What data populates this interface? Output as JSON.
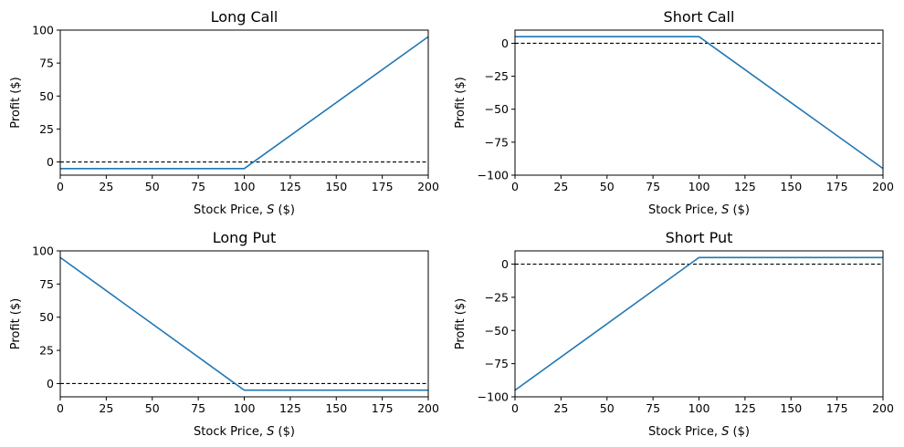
{
  "colors": {
    "line": "#1f77b4",
    "zero_line": "#000000"
  },
  "chart_data": [
    {
      "type": "line",
      "title": "Long Call",
      "xlabel": "Stock Price, S ($)",
      "ylabel": "Profit ($)",
      "xlim": [
        0,
        200
      ],
      "ylim": [
        -10,
        100
      ],
      "xticks": [
        0,
        25,
        50,
        75,
        100,
        125,
        150,
        175,
        200
      ],
      "yticks": [
        0,
        25,
        50,
        75,
        100
      ],
      "grid": false,
      "series": [
        {
          "x": [
            0,
            100,
            200
          ],
          "y": [
            -5,
            -5,
            95
          ]
        }
      ],
      "reference_lines": [
        {
          "y": 0,
          "style": "dashed"
        }
      ]
    },
    {
      "type": "line",
      "title": "Short Call",
      "xlabel": "Stock Price, S ($)",
      "ylabel": "Profit ($)",
      "xlim": [
        0,
        200
      ],
      "ylim": [
        -100,
        10
      ],
      "xticks": [
        0,
        25,
        50,
        75,
        100,
        125,
        150,
        175,
        200
      ],
      "yticks": [
        -100,
        -75,
        -50,
        -25,
        0
      ],
      "grid": false,
      "series": [
        {
          "x": [
            0,
            100,
            200
          ],
          "y": [
            5,
            5,
            -95
          ]
        }
      ],
      "reference_lines": [
        {
          "y": 0,
          "style": "dashed"
        }
      ]
    },
    {
      "type": "line",
      "title": "Long Put",
      "xlabel": "Stock Price, S ($)",
      "ylabel": "Profit ($)",
      "xlim": [
        0,
        200
      ],
      "ylim": [
        -10,
        100
      ],
      "xticks": [
        0,
        25,
        50,
        75,
        100,
        125,
        150,
        175,
        200
      ],
      "yticks": [
        0,
        25,
        50,
        75,
        100
      ],
      "grid": false,
      "series": [
        {
          "x": [
            0,
            100,
            200
          ],
          "y": [
            95,
            -5,
            -5
          ]
        }
      ],
      "reference_lines": [
        {
          "y": 0,
          "style": "dashed"
        }
      ]
    },
    {
      "type": "line",
      "title": "Short Put",
      "xlabel": "Stock Price, S ($)",
      "ylabel": "Profit ($)",
      "xlim": [
        0,
        200
      ],
      "ylim": [
        -100,
        10
      ],
      "xticks": [
        0,
        25,
        50,
        75,
        100,
        125,
        150,
        175,
        200
      ],
      "yticks": [
        -100,
        -75,
        -50,
        -25,
        0
      ],
      "grid": false,
      "series": [
        {
          "x": [
            0,
            100,
            200
          ],
          "y": [
            -95,
            5,
            5
          ]
        }
      ],
      "reference_lines": [
        {
          "y": 0,
          "style": "dashed"
        }
      ]
    }
  ]
}
